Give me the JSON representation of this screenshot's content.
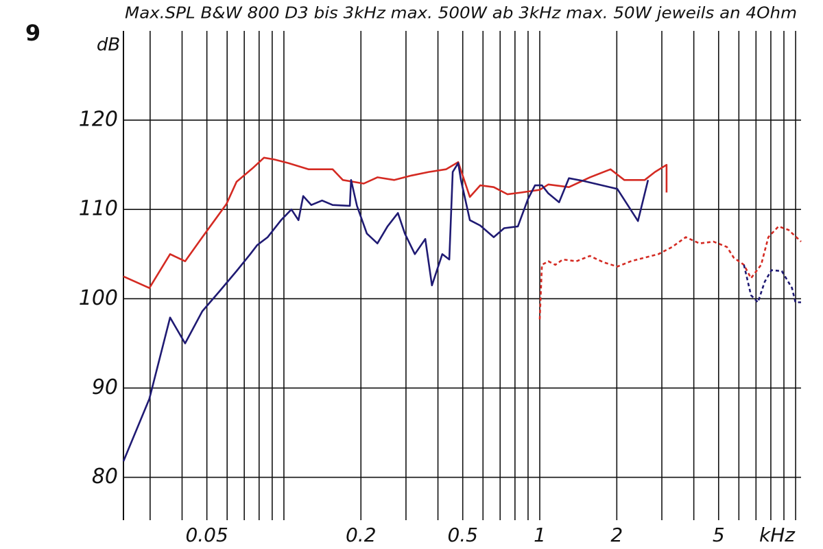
{
  "figure_label": "9",
  "chart_data": {
    "type": "line",
    "title": "Max.SPL B&W 800 D3 bis 3kHz max. 500W ab 3kHz max. 50W jeweils an 4Ohm",
    "xlabel": "kHz",
    "ylabel": "dB",
    "xscale": "log",
    "xlim": [
      0.0236,
      10.5
    ],
    "ylim": [
      75.2,
      130
    ],
    "xticks": [
      0.05,
      0.2,
      0.5,
      1,
      2,
      5
    ],
    "xgrid": [
      0.03,
      0.04,
      0.05,
      0.06,
      0.07,
      0.08,
      0.09,
      0.1,
      0.2,
      0.3,
      0.4,
      0.5,
      0.6,
      0.7,
      0.8,
      0.9,
      1,
      2,
      3,
      4,
      5,
      6,
      7,
      8,
      9,
      10
    ],
    "yticks": [
      80,
      90,
      100,
      110,
      120
    ],
    "grid": true,
    "series": [
      {
        "color": "#d42a22",
        "dash": false,
        "x": [
          0.0236,
          0.0298,
          0.0359,
          0.0411,
          0.048,
          0.0543,
          0.0596,
          0.0653,
          0.0753,
          0.0836,
          0.0917,
          0.104,
          0.125,
          0.155,
          0.17,
          0.205,
          0.232,
          0.27,
          0.315,
          0.368,
          0.43,
          0.48,
          0.533,
          0.585,
          0.661,
          0.748,
          0.847,
          1,
          1.08,
          1.3,
          1.57,
          1.89,
          2.14,
          2.57,
          2.82,
          3.13,
          3.13
        ],
        "values": [
          102.5,
          101.2,
          105,
          104.2,
          106.9,
          109,
          110.6,
          113.1,
          114.6,
          115.8,
          115.6,
          115.2,
          114.5,
          114.5,
          113.3,
          112.9,
          113.6,
          113.3,
          113.8,
          114.2,
          114.5,
          115.3,
          111.4,
          112.7,
          112.5,
          111.7,
          111.9,
          112.2,
          112.8,
          112.5,
          113.6,
          114.5,
          113.3,
          113.3,
          114.2,
          115,
          111.9
        ]
      },
      {
        "color": "#1f1a73",
        "dash": false,
        "x": [
          0.0236,
          0.0298,
          0.0359,
          0.0411,
          0.048,
          0.0559,
          0.0653,
          0.0739,
          0.0786,
          0.0864,
          0.0975,
          0.107,
          0.114,
          0.119,
          0.128,
          0.141,
          0.155,
          0.181,
          0.183,
          0.193,
          0.211,
          0.232,
          0.254,
          0.279,
          0.297,
          0.325,
          0.357,
          0.379,
          0.416,
          0.443,
          0.457,
          0.48,
          0.492,
          0.533,
          0.585,
          0.661,
          0.726,
          0.821,
          0.9,
          0.958,
          1.02,
          1.08,
          1.19,
          1.3,
          1.48,
          2.01,
          2.42,
          2.65
        ],
        "values": [
          81.8,
          88.8,
          97.9,
          95,
          98.6,
          100.8,
          103.1,
          105,
          106,
          106.9,
          108.8,
          110,
          108.8,
          111.5,
          110.5,
          111,
          110.5,
          110.4,
          113.3,
          110.4,
          107.3,
          106.2,
          108.1,
          109.6,
          107.3,
          105,
          106.7,
          101.5,
          105,
          104.4,
          114.2,
          115.2,
          113.3,
          108.8,
          108.2,
          106.9,
          107.9,
          108.1,
          111.2,
          112.7,
          112.7,
          111.8,
          110.8,
          113.5,
          113.2,
          112.3,
          108.7,
          113.3
        ]
      },
      {
        "color": "#d42a22",
        "dash": true,
        "x": [
          1,
          1.02,
          1.08,
          1.15,
          1.23,
          1.39,
          1.57,
          1.77,
          2.01,
          2.27,
          2.57,
          2.91,
          3.29,
          3.72,
          4.21,
          4.77,
          5.39,
          5.73,
          6.28,
          6.69,
          7.33,
          7.82,
          8.57,
          9.39,
          10.5
        ],
        "values": [
          97.7,
          103.8,
          104.2,
          103.8,
          104.4,
          104.2,
          104.8,
          104.1,
          103.6,
          104.2,
          104.6,
          105,
          105.8,
          106.9,
          106.2,
          106.4,
          105.8,
          104.6,
          103.8,
          102.3,
          103.8,
          106.9,
          108.1,
          107.7,
          106.4
        ]
      },
      {
        "color": "#1f1a73",
        "dash": true,
        "x": [
          6.28,
          6.69,
          7.12,
          7.57,
          8.05,
          8.83,
          9.68,
          9.98,
          10.5
        ],
        "values": [
          103.8,
          100.4,
          99.6,
          101.9,
          103.2,
          103.1,
          101.2,
          99.6,
          99.6
        ]
      }
    ]
  }
}
